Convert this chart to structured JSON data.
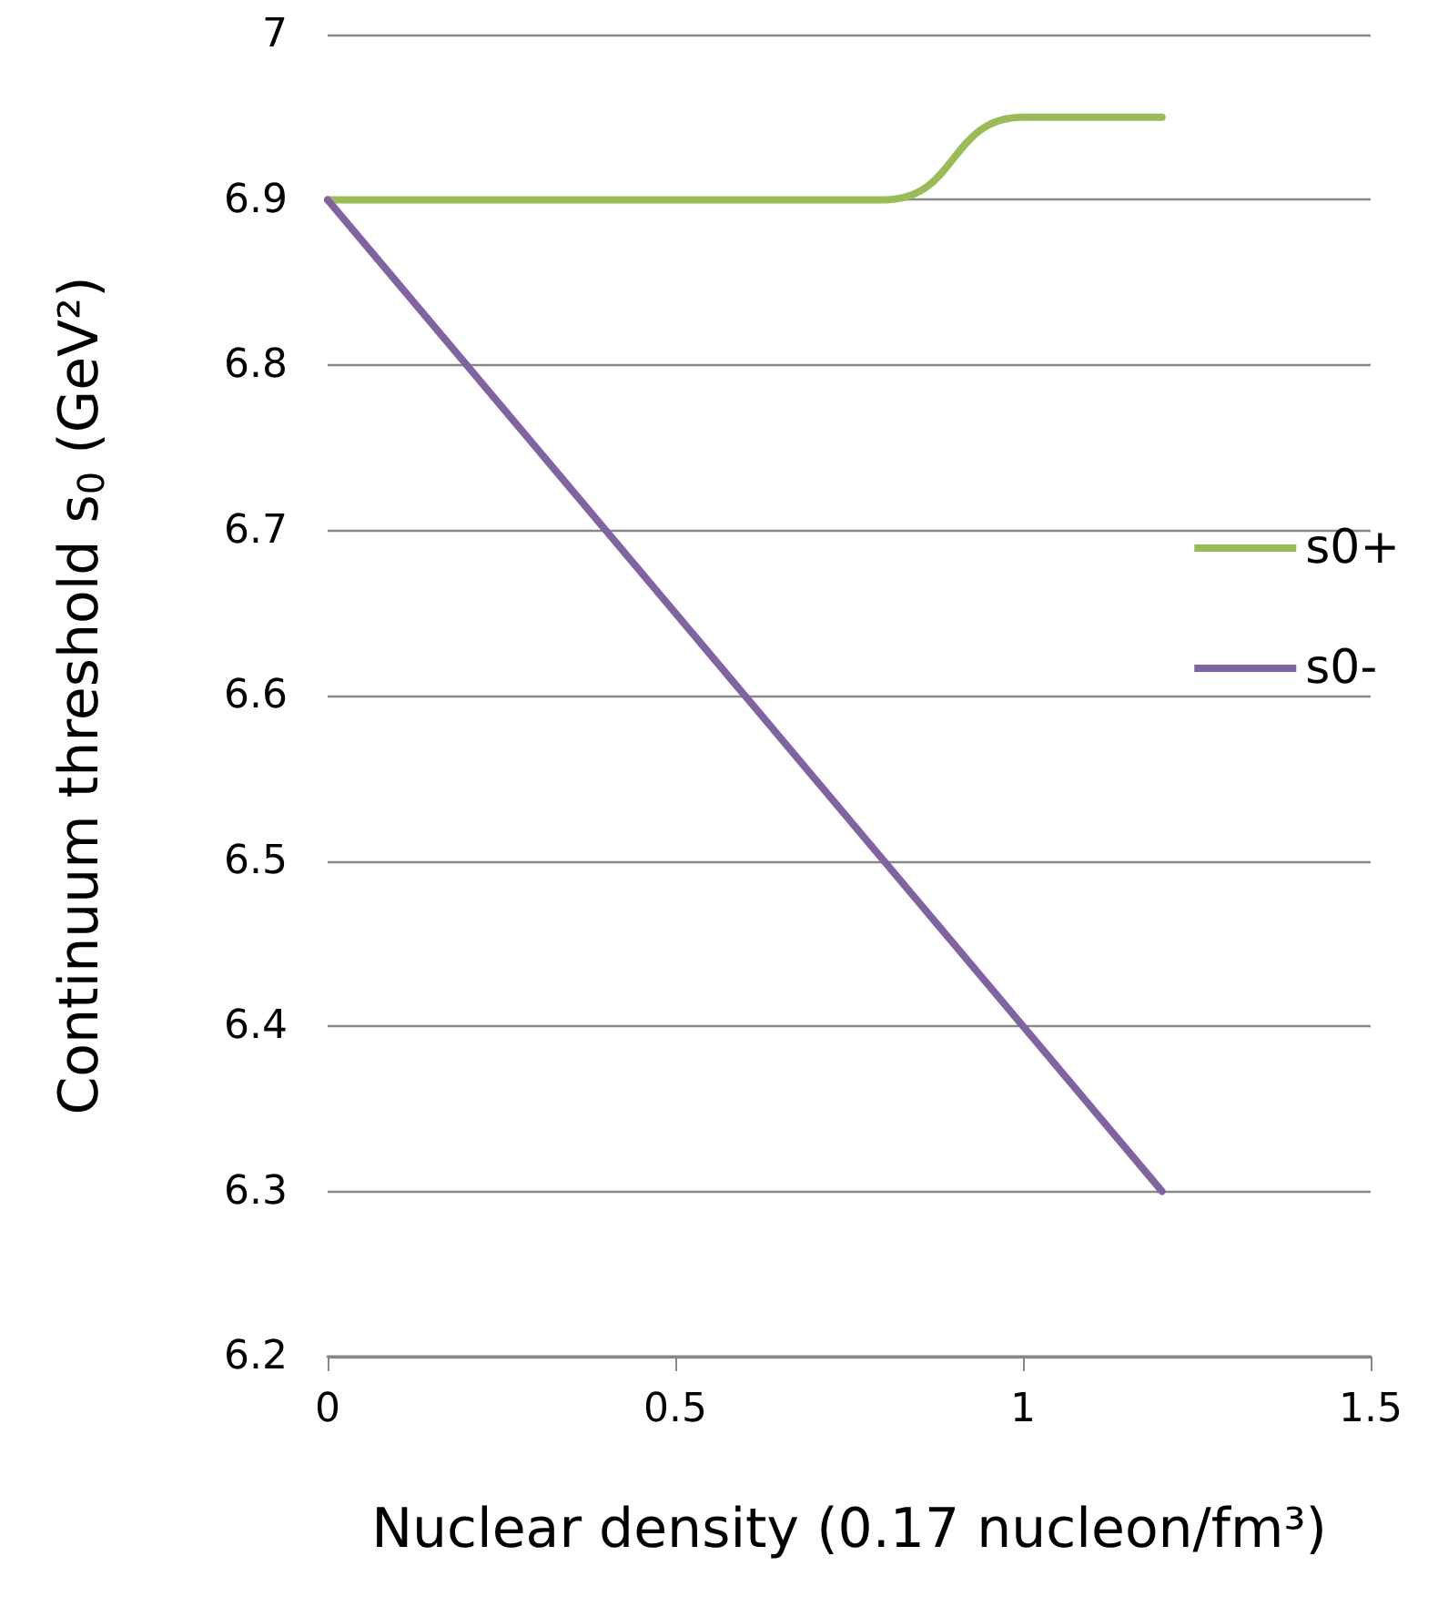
{
  "chart_data": {
    "type": "line",
    "xlabel": "Nuclear density (0.17 nucleon/fm³)",
    "ylabel": "Continuum threshold s$_{0}$ (GeV²)",
    "x": [
      0,
      0.2,
      0.4,
      0.6,
      0.8,
      1.0,
      1.2
    ],
    "series": [
      {
        "name": "s0+",
        "color": "#9bbb59",
        "values": [
          6.9,
          6.9,
          6.9,
          6.9,
          6.9,
          6.95,
          6.95
        ]
      },
      {
        "name": "s0-",
        "color": "#8064a2",
        "values": [
          6.9,
          6.8,
          6.7,
          6.6,
          6.5,
          6.4,
          6.3
        ]
      }
    ],
    "xlim": [
      0,
      1.5
    ],
    "xticks": [
      0,
      0.5,
      1,
      1.5
    ],
    "ylim": [
      6.2,
      7
    ],
    "yticks": [
      6.2,
      6.3,
      6.4,
      6.5,
      6.6,
      6.7,
      6.8,
      6.9,
      7
    ],
    "grid": "y",
    "legend": "right",
    "marker": "none",
    "line_style": "solid"
  }
}
